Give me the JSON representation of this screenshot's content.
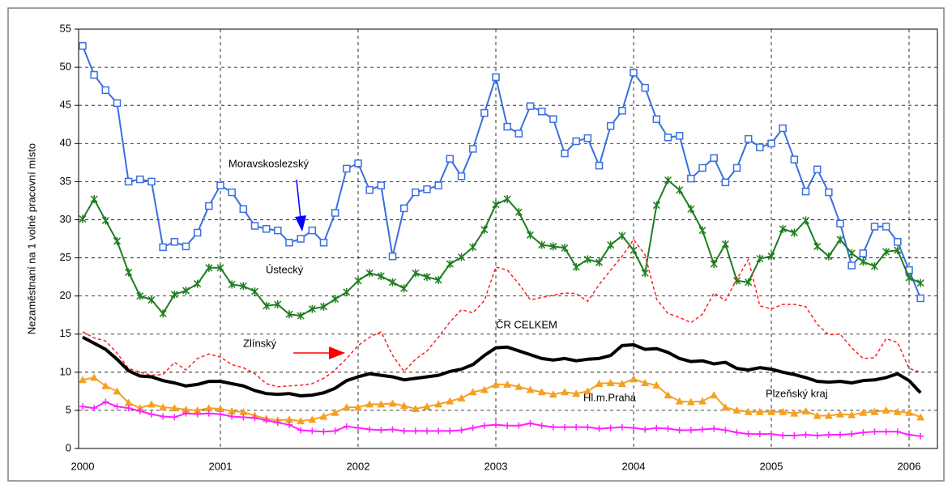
{
  "chart_data": {
    "type": "line",
    "y_label": "Nezaměstnaní na 1 volné pracovní místo",
    "categories": [
      "2000",
      null,
      null,
      null,
      null,
      null,
      null,
      null,
      null,
      null,
      null,
      null,
      "2001",
      null,
      null,
      null,
      null,
      null,
      null,
      null,
      null,
      null,
      null,
      null,
      "2002",
      null,
      null,
      null,
      null,
      null,
      null,
      null,
      null,
      null,
      null,
      null,
      "2003",
      null,
      null,
      null,
      null,
      null,
      null,
      null,
      null,
      null,
      null,
      null,
      "2004",
      null,
      null,
      null,
      null,
      null,
      null,
      null,
      null,
      null,
      null,
      null,
      "2005",
      null,
      null,
      null,
      null,
      null,
      null,
      null,
      null,
      null,
      null,
      null,
      "2006",
      null
    ],
    "ylim": [
      0,
      55
    ],
    "yticks": [
      0,
      5,
      10,
      15,
      20,
      25,
      30,
      35,
      40,
      45,
      50,
      55
    ],
    "grid": true,
    "series": [
      {
        "name": "Moravskoslezský",
        "color": "#3a6fe0",
        "marker": "square",
        "line_style": "solid",
        "values": [
          52.8,
          49,
          47,
          45.3,
          35,
          35.3,
          35,
          26.4,
          27.1,
          26.5,
          28.3,
          31.8,
          34.5,
          33.6,
          31.4,
          29.2,
          28.8,
          28.6,
          27,
          27.5,
          28.6,
          27,
          30.9,
          36.7,
          37.4,
          33.9,
          34.5,
          25.2,
          31.5,
          33.6,
          34,
          34.5,
          38,
          35.7,
          39.3,
          44,
          48.7,
          42.2,
          41.3,
          44.9,
          44.2,
          43.2,
          38.7,
          40.3,
          40.7,
          37.1,
          42.3,
          44.3,
          49.3,
          47.3,
          43.2,
          40.8,
          41,
          35.4,
          36.8,
          38.1,
          34.9,
          36.8,
          40.6,
          39.5,
          40,
          42,
          37.9,
          33.7,
          36.6,
          33.6,
          29.5,
          24,
          25.6,
          29.1,
          29.1,
          27.1,
          23.4,
          19.7
        ]
      },
      {
        "name": "Ústecký",
        "color": "#1e7d1e",
        "marker": "star",
        "line_style": "solid",
        "values": [
          30.1,
          32.7,
          29.9,
          27.2,
          23.1,
          20,
          19.5,
          17.7,
          20.2,
          20.7,
          21.6,
          23.7,
          23.7,
          21.5,
          21.3,
          20.6,
          18.7,
          18.9,
          17.6,
          17.4,
          18.3,
          18.6,
          19.6,
          20.5,
          22,
          23,
          22.6,
          21.8,
          21,
          23,
          22.5,
          22.1,
          24.2,
          25.1,
          26.4,
          28.7,
          32,
          32.7,
          31,
          28,
          26.7,
          26.5,
          26.3,
          23.8,
          24.8,
          24.4,
          26.7,
          27.9,
          26,
          23,
          31.9,
          35.2,
          33.9,
          31.4,
          28.6,
          24.2,
          26.8,
          22,
          21.8,
          24.9,
          25.2,
          28.8,
          28.3,
          29.9,
          26.5,
          25.2,
          27.4,
          25.6,
          24.5,
          23.9,
          25.8,
          26,
          22.4,
          21.7
        ]
      },
      {
        "name": "Zlínský",
        "color": "#ff2020",
        "marker": "none",
        "line_style": "dashed",
        "values": [
          15.3,
          14.5,
          14.1,
          12.5,
          10.5,
          10,
          9.6,
          9.7,
          11.3,
          10.3,
          11.8,
          12.4,
          12,
          11,
          10.6,
          9.8,
          8.5,
          8.1,
          8.2,
          8.3,
          8.5,
          9.2,
          10.3,
          11.8,
          13.5,
          14.6,
          15.3,
          12.2,
          10.1,
          11.7,
          12.8,
          14.6,
          16.6,
          18.2,
          17.8,
          19.4,
          23.8,
          23.4,
          21.6,
          19.5,
          19.8,
          20.1,
          20.4,
          20.3,
          19.3,
          21.5,
          23.4,
          25.2,
          27.4,
          25.4,
          19.6,
          17.7,
          17.2,
          16.5,
          17.6,
          20.4,
          19.4,
          22.2,
          24.8,
          18.7,
          18.3,
          18.9,
          18.9,
          18.6,
          16.3,
          14.9,
          15,
          13.2,
          11.8,
          11.9,
          14.4,
          13.9,
          10.5,
          10
        ]
      },
      {
        "name": "ČR CELKEM",
        "color": "#000000",
        "marker": "none",
        "line_style": "bold",
        "values": [
          14.6,
          13.8,
          13,
          11.7,
          10.2,
          9.5,
          9.4,
          8.9,
          8.6,
          8.2,
          8.4,
          8.8,
          8.8,
          8.5,
          8.2,
          7.6,
          7.2,
          7.1,
          7.2,
          6.9,
          7,
          7.3,
          7.9,
          8.9,
          9.4,
          9.8,
          9.6,
          9.4,
          9,
          9.2,
          9.4,
          9.6,
          10.1,
          10.4,
          11,
          12.2,
          13.2,
          13.3,
          12.8,
          12.3,
          11.8,
          11.6,
          11.8,
          11.5,
          11.7,
          11.8,
          12.2,
          13.5,
          13.6,
          13,
          13.1,
          12.6,
          11.8,
          11.4,
          11.5,
          11.1,
          11.3,
          10.5,
          10.3,
          10.6,
          10.4,
          10,
          9.7,
          9.3,
          8.8,
          8.7,
          8.8,
          8.6,
          8.9,
          9,
          9.3,
          9.8,
          8.9,
          7.3
        ]
      },
      {
        "name": "Hl.m.Praha",
        "color": "#f5a020",
        "marker": "triangle",
        "line_style": "solid",
        "values": [
          9,
          9.3,
          8.2,
          7.5,
          6,
          5.3,
          5.8,
          5.4,
          5.3,
          5.1,
          5,
          5.3,
          5.2,
          4.9,
          4.8,
          4.3,
          3.9,
          3.7,
          3.8,
          3.6,
          3.8,
          4.2,
          4.7,
          5.4,
          5.4,
          5.8,
          5.8,
          5.9,
          5.6,
          5.2,
          5.5,
          5.8,
          6.2,
          6.6,
          7.4,
          7.7,
          8.4,
          8.4,
          8.1,
          7.7,
          7.4,
          7.1,
          7.4,
          7.2,
          7.5,
          8.5,
          8.6,
          8.5,
          9.1,
          8.6,
          8.3,
          7,
          6.2,
          6.1,
          6.2,
          7,
          5.4,
          5,
          4.8,
          4.8,
          4.8,
          4.8,
          4.6,
          4.9,
          4.3,
          4.3,
          4.5,
          4.4,
          4.7,
          4.8,
          5,
          4.8,
          4.7,
          4.1
        ]
      },
      {
        "name": "Plzeňský kraj",
        "color": "#ff20ff",
        "marker": "plus",
        "line_style": "solid",
        "values": [
          5.5,
          5.3,
          6.1,
          5.5,
          5.3,
          4.9,
          4.5,
          4.2,
          4.1,
          4.6,
          4.5,
          4.6,
          4.5,
          4.2,
          4.1,
          4,
          3.7,
          3.4,
          3.1,
          2.4,
          2.3,
          2.2,
          2.3,
          2.9,
          2.7,
          2.5,
          2.4,
          2.5,
          2.3,
          2.3,
          2.3,
          2.3,
          2.3,
          2.4,
          2.7,
          3,
          3.1,
          3,
          3,
          3.3,
          3,
          2.8,
          2.8,
          2.8,
          2.8,
          2.6,
          2.7,
          2.8,
          2.7,
          2.5,
          2.7,
          2.6,
          2.4,
          2.4,
          2.5,
          2.6,
          2.4,
          2.1,
          1.9,
          1.9,
          1.9,
          1.7,
          1.7,
          1.8,
          1.7,
          1.8,
          1.8,
          1.9,
          2.1,
          2.2,
          2.2,
          2.2,
          1.8,
          1.6
        ]
      }
    ]
  }
}
